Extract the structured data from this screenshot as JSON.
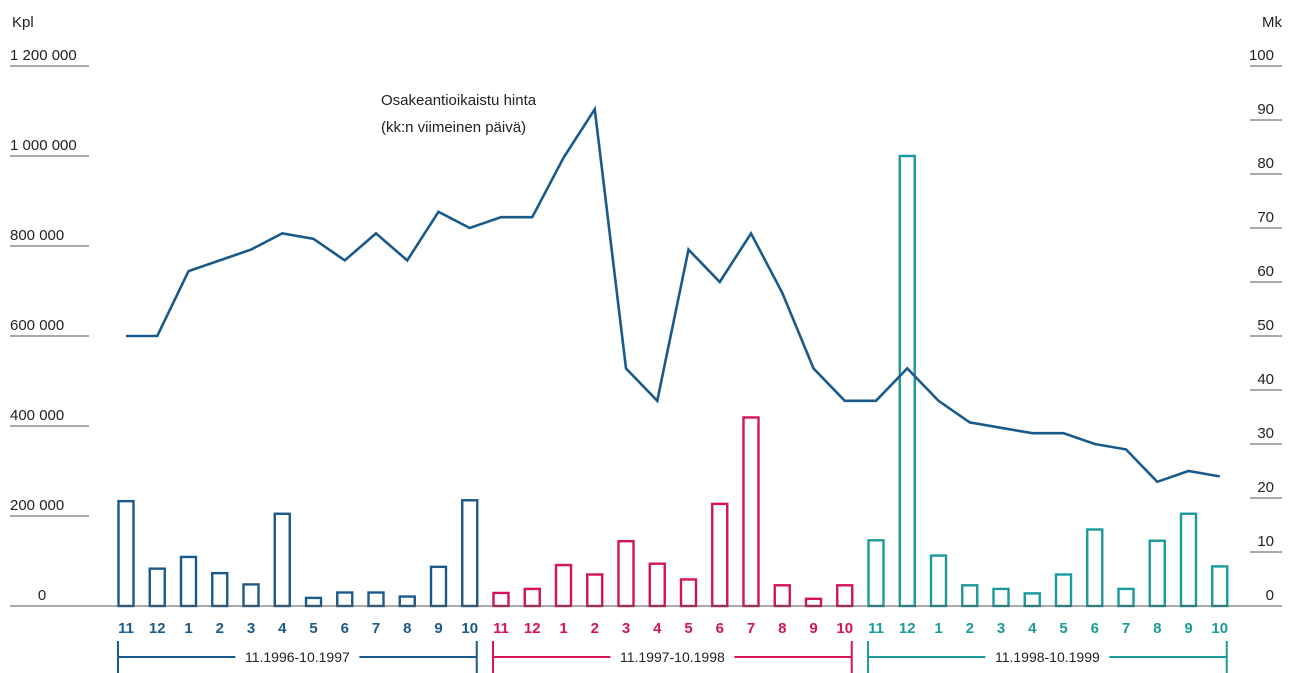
{
  "chart_data": {
    "type": "bar",
    "left_axis": {
      "unit_label": "Kpl",
      "ticks": [
        0,
        200000,
        400000,
        600000,
        800000,
        1000000,
        1200000
      ],
      "tick_labels": [
        "0",
        "200 000",
        "400 000",
        "600 000",
        "800 000",
        "1 000 000",
        "1 200 000"
      ],
      "ylim": [
        0,
        1200000
      ]
    },
    "right_axis": {
      "unit_label": "Mk",
      "ticks": [
        0,
        10,
        20,
        30,
        40,
        50,
        60,
        70,
        80,
        90,
        100
      ],
      "tick_labels": [
        "0",
        "10",
        "20",
        "30",
        "40",
        "50",
        "60",
        "70",
        "80",
        "90",
        "100"
      ],
      "ylim": [
        0,
        100
      ]
    },
    "categories": [
      "11",
      "12",
      "1",
      "2",
      "3",
      "4",
      "5",
      "6",
      "7",
      "8",
      "9",
      "10",
      "11",
      "12",
      "1",
      "2",
      "3",
      "4",
      "5",
      "6",
      "7",
      "8",
      "9",
      "10",
      "11",
      "12",
      "1",
      "2",
      "3",
      "4",
      "5",
      "6",
      "7",
      "8",
      "9",
      "10"
    ],
    "periods": [
      {
        "label": "11.1996-10.1997",
        "start": 0,
        "end": 11,
        "color": "#1a5a8a"
      },
      {
        "label": "11.1997-10.1998",
        "start": 12,
        "end": 23,
        "color": "#d4135c"
      },
      {
        "label": "11.1998-10.1999",
        "start": 24,
        "end": 35,
        "color": "#1a9a9a"
      }
    ],
    "series": [
      {
        "kind": "bar",
        "axis": "left",
        "values": [
          233000,
          83000,
          109000,
          73000,
          48000,
          205000,
          18000,
          30000,
          30000,
          21000,
          87000,
          235000,
          29000,
          38000,
          91000,
          70000,
          144000,
          94000,
          59000,
          227000,
          419000,
          46000,
          16000,
          46000,
          146000,
          1000000,
          112000,
          46000,
          38000,
          28000,
          70000,
          170000,
          38000,
          145000,
          205000,
          88000
        ]
      },
      {
        "kind": "line",
        "axis": "right",
        "color": "#1a5a8a",
        "values": [
          50,
          50,
          62,
          64,
          66,
          69,
          68,
          64,
          69,
          64,
          73,
          70,
          72,
          72,
          83,
          92,
          44,
          38,
          66,
          60,
          69,
          58,
          44,
          38,
          38,
          44,
          38,
          34,
          33,
          32,
          32,
          30,
          29,
          23,
          25,
          24
        ]
      }
    ],
    "annotations": [
      {
        "text_lines": [
          "Osakeantioikaistu hinta",
          "(kk:n viimeinen päivä)"
        ],
        "points_to_series": 1
      }
    ]
  }
}
